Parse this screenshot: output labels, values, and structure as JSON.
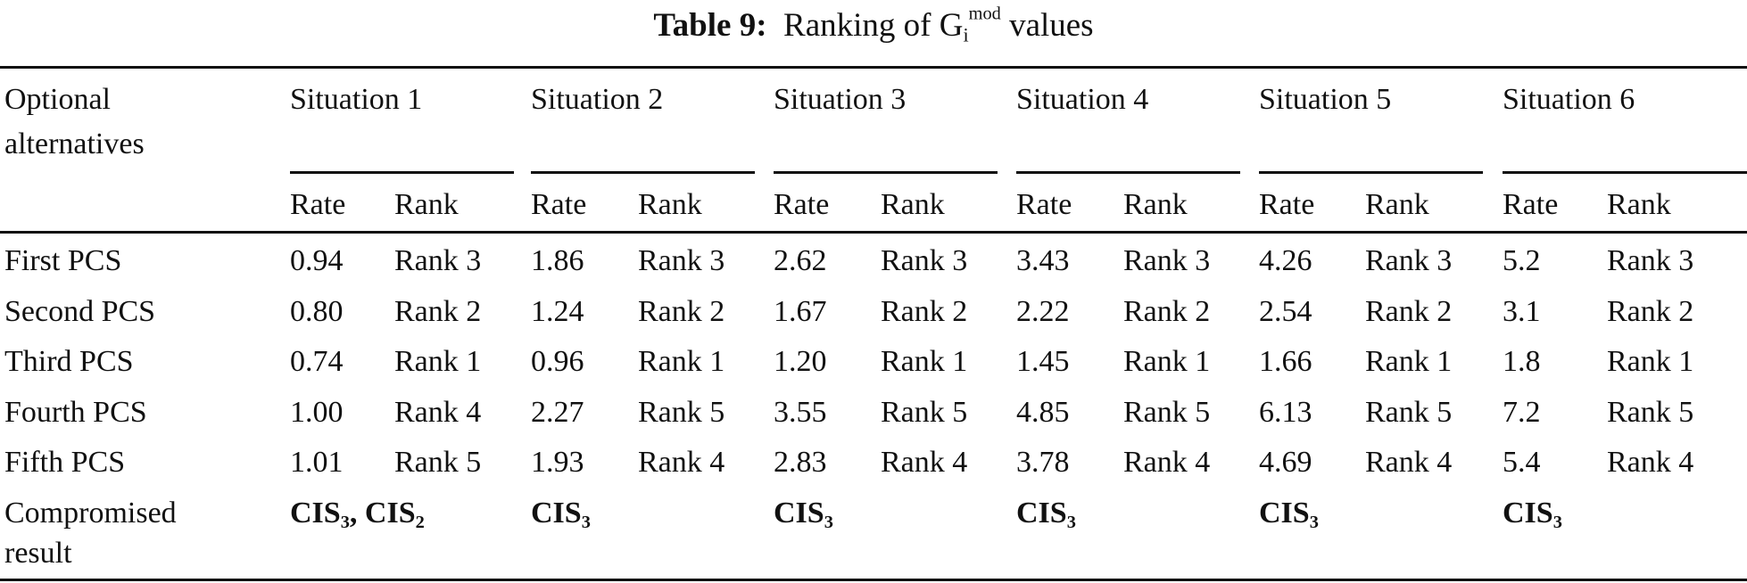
{
  "title": {
    "label": "Table 9:",
    "text_prefix": "Ranking of G",
    "subscript": "i",
    "superscript": "mod",
    "text_suffix": "values"
  },
  "header": {
    "first_column": [
      "Optional",
      "alternatives"
    ],
    "situations": [
      "Situation 1",
      "Situation 2",
      "Situation 3",
      "Situation 4",
      "Situation 5",
      "Situation 6"
    ],
    "sub_columns": [
      "Rate",
      "Rank"
    ]
  },
  "rows": [
    {
      "label": "First PCS",
      "cells": [
        [
          "0.94",
          "Rank 3"
        ],
        [
          "1.86",
          "Rank 3"
        ],
        [
          "2.62",
          "Rank 3"
        ],
        [
          "3.43",
          "Rank 3"
        ],
        [
          "4.26",
          "Rank 3"
        ],
        [
          "5.2",
          "Rank 3"
        ]
      ]
    },
    {
      "label": "Second PCS",
      "cells": [
        [
          "0.80",
          "Rank 2"
        ],
        [
          "1.24",
          "Rank 2"
        ],
        [
          "1.67",
          "Rank 2"
        ],
        [
          "2.22",
          "Rank 2"
        ],
        [
          "2.54",
          "Rank 2"
        ],
        [
          "3.1",
          "Rank 2"
        ]
      ]
    },
    {
      "label": "Third PCS",
      "cells": [
        [
          "0.74",
          "Rank 1"
        ],
        [
          "0.96",
          "Rank 1"
        ],
        [
          "1.20",
          "Rank 1"
        ],
        [
          "1.45",
          "Rank 1"
        ],
        [
          "1.66",
          "Rank 1"
        ],
        [
          "1.8",
          "Rank 1"
        ]
      ]
    },
    {
      "label": "Fourth PCS",
      "cells": [
        [
          "1.00",
          "Rank 4"
        ],
        [
          "2.27",
          "Rank 5"
        ],
        [
          "3.55",
          "Rank 5"
        ],
        [
          "4.85",
          "Rank 5"
        ],
        [
          "6.13",
          "Rank 5"
        ],
        [
          "7.2",
          "Rank 5"
        ]
      ]
    },
    {
      "label": "Fifth PCS",
      "cells": [
        [
          "1.01",
          "Rank 5"
        ],
        [
          "1.93",
          "Rank 4"
        ],
        [
          "2.83",
          "Rank 4"
        ],
        [
          "3.78",
          "Rank 4"
        ],
        [
          "4.69",
          "Rank 4"
        ],
        [
          "5.4",
          "Rank 4"
        ]
      ]
    }
  ],
  "compromised": {
    "label": [
      "Compromised",
      "result"
    ],
    "results": [
      [
        {
          "base": "CIS",
          "sub": "3",
          "sep": ", "
        },
        {
          "base": "CIS",
          "sub": "2",
          "sep": ""
        }
      ],
      [
        {
          "base": "CIS",
          "sub": "3",
          "sep": ""
        }
      ],
      [
        {
          "base": "CIS",
          "sub": "3",
          "sep": ""
        }
      ],
      [
        {
          "base": "CIS",
          "sub": "3",
          "sep": ""
        }
      ],
      [
        {
          "base": "CIS",
          "sub": "3",
          "sep": ""
        }
      ],
      [
        {
          "base": "CIS",
          "sub": "3",
          "sep": ""
        }
      ]
    ]
  }
}
